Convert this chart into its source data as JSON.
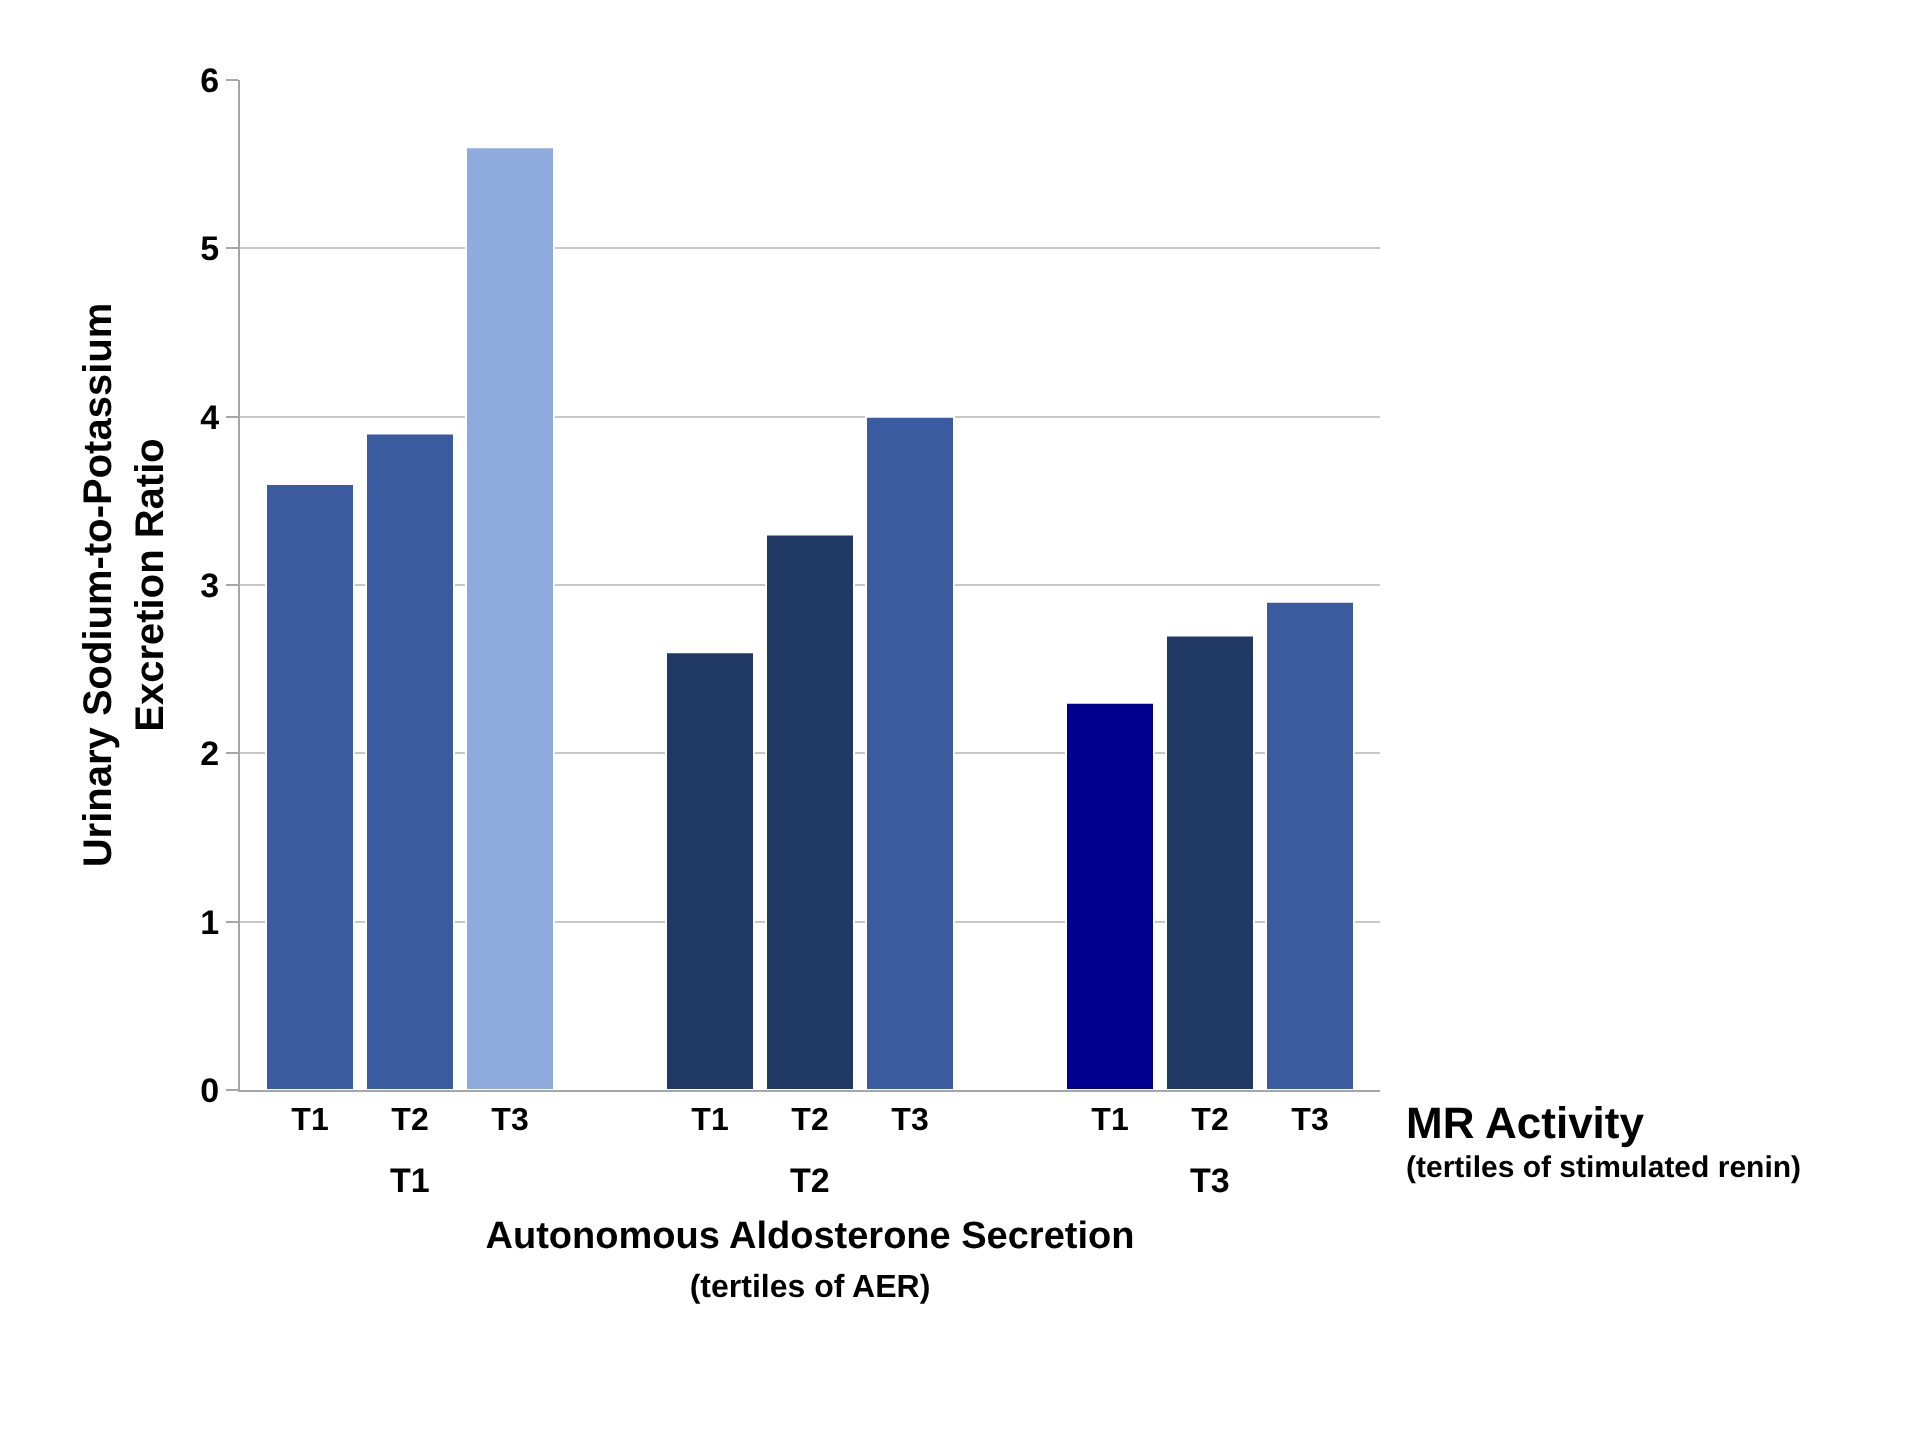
{
  "chart_data": {
    "type": "bar",
    "ylabel": "Urinary Sodium-to-Potassium\nExcretion Ratio",
    "xlabel": "Autonomous Aldosterone Secretion\n(tertiles of AER)",
    "legend_title": "MR Activity\n(tertiles of stimulated renin)",
    "categories": [
      "T1",
      "T2",
      "T3"
    ],
    "series": [
      {
        "name": "T1",
        "colors": [
          "#3a5ba0",
          "#203864",
          "#000090"
        ],
        "values": [
          3.6,
          2.6,
          2.3
        ]
      },
      {
        "name": "T2",
        "colors": [
          "#3a5ba0",
          "#203864",
          "#203864"
        ],
        "values": [
          3.9,
          3.3,
          2.7
        ]
      },
      {
        "name": "T3",
        "colors": [
          "#8faadc",
          "#3a5ba0",
          "#3a5ba0"
        ],
        "values": [
          5.6,
          4.0,
          2.9
        ]
      }
    ],
    "ylim": [
      0,
      6
    ],
    "yticks": [
      0,
      1,
      2,
      3,
      4,
      5,
      6
    ],
    "grid": "y"
  }
}
